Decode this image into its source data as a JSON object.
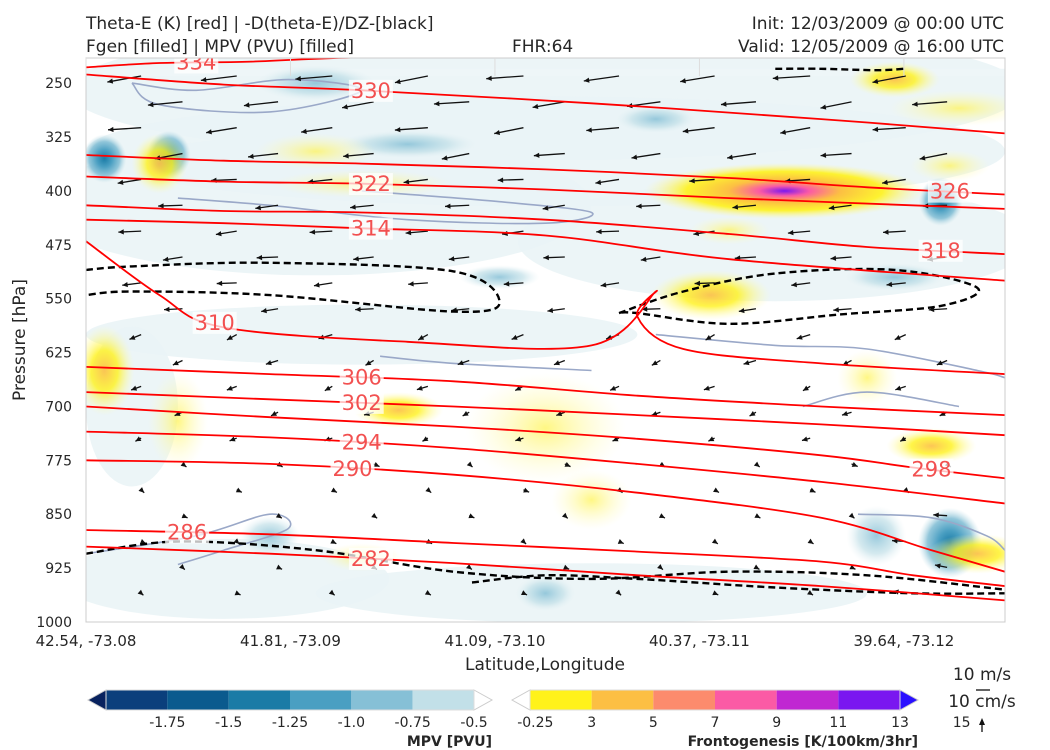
{
  "header": {
    "title_left_1": "Theta-E (K) [red] | -D(theta-E)/DZ-[black]",
    "title_left_2": "Fgen [filled] | MPV (PVU) [filled]",
    "fhr": "FHR:64",
    "init": "Init: 12/03/2009 @ 00:00 UTC",
    "valid": "Valid: 12/05/2009 @ 16:00 UTC"
  },
  "colors": {
    "theta_e": "#ff0000",
    "theta_e_label": "#f25050",
    "stability": "#000000",
    "mpv_outline": "#9aa8c8",
    "vector": "#111111"
  },
  "chart_data": {
    "type": "cross-section",
    "xlabel": "Latitude,Longitude",
    "ylabel": "Pressure [hPa]",
    "x_ticks": [
      "42.54, -73.08",
      "41.81, -73.09",
      "41.09, -73.10",
      "40.37, -73.11",
      "39.64, -73.12"
    ],
    "y_ticks": [
      250,
      325,
      400,
      475,
      550,
      625,
      700,
      775,
      850,
      925,
      1000
    ],
    "ylim": [
      1000,
      215
    ],
    "grid": true,
    "theta_e_contours": [
      {
        "label": "334",
        "x": [
          0.0,
          0.08,
          0.18,
          0.3,
          0.48
        ],
        "p": [
          228,
          222,
          220,
          214,
          214
        ]
      },
      {
        "label": "330",
        "x": [
          0.0,
          0.15,
          0.3,
          0.55,
          0.8,
          1.0
        ],
        "p": [
          238,
          252,
          260,
          278,
          300,
          320
        ]
      },
      {
        "label": "326",
        "x": [
          0.0,
          0.15,
          0.3,
          0.5,
          0.7,
          0.85,
          1.0
        ],
        "p": [
          350,
          358,
          362,
          370,
          382,
          395,
          405
        ]
      },
      {
        "label": "322",
        "x": [
          0.0,
          0.15,
          0.3,
          0.5,
          0.7,
          1.0
        ],
        "p": [
          380,
          387,
          390,
          398,
          410,
          425
        ]
      },
      {
        "label": "318",
        "x": [
          0.0,
          0.15,
          0.3,
          0.5,
          0.7,
          0.85,
          1.0
        ],
        "p": [
          420,
          428,
          430,
          440,
          460,
          478,
          488
        ]
      },
      {
        "label": "314",
        "x": [
          0.0,
          0.15,
          0.3,
          0.5,
          0.7,
          1.0
        ],
        "p": [
          440,
          445,
          452,
          462,
          495,
          525
        ]
      },
      {
        "label": "310",
        "x": [
          0.0,
          0.08,
          0.15,
          0.35,
          0.55,
          0.62,
          0.6,
          0.65,
          0.8,
          1.0
        ],
        "p": [
          470,
          545,
          590,
          610,
          615,
          540,
          575,
          620,
          640,
          655
        ]
      },
      {
        "label": "306",
        "x": [
          0.0,
          0.2,
          0.4,
          0.6,
          0.8,
          1.0
        ],
        "p": [
          645,
          655,
          665,
          685,
          700,
          712
        ]
      },
      {
        "label": "302",
        "x": [
          0.0,
          0.2,
          0.4,
          0.6,
          0.8,
          1.0
        ],
        "p": [
          680,
          690,
          700,
          712,
          725,
          740
        ]
      },
      {
        "label": "298",
        "x": [
          0.0,
          0.2,
          0.4,
          0.6,
          0.8,
          0.9,
          1.0
        ],
        "p": [
          700,
          715,
          728,
          745,
          768,
          785,
          800
        ]
      },
      {
        "label": "294",
        "x": [
          0.0,
          0.2,
          0.4,
          0.6,
          0.8,
          1.0
        ],
        "p": [
          735,
          743,
          758,
          780,
          805,
          835
        ]
      },
      {
        "label": "290",
        "x": [
          0.0,
          0.2,
          0.4,
          0.6,
          0.8,
          0.92,
          1.0
        ],
        "p": [
          775,
          780,
          795,
          820,
          855,
          900,
          930
        ]
      },
      {
        "label": "286",
        "x": [
          0.0,
          0.2,
          0.4,
          0.6,
          0.8,
          0.9,
          1.0
        ],
        "p": [
          872,
          878,
          890,
          902,
          916,
          935,
          950
        ]
      },
      {
        "label": "282",
        "x": [
          0.0,
          0.2,
          0.4,
          0.6,
          0.8,
          1.0
        ],
        "p": [
          895,
          905,
          918,
          935,
          950,
          970
        ]
      }
    ],
    "stability_contours": [
      {
        "x": [
          0.75,
          0.8,
          0.86,
          0.89
        ],
        "p": [
          230,
          230,
          232,
          230
        ]
      },
      {
        "x": [
          0.0,
          0.05,
          0.2,
          0.4,
          0.45,
          0.4,
          0.2,
          0.05,
          0.0
        ],
        "p": [
          510,
          505,
          500,
          512,
          555,
          568,
          545,
          540,
          545
        ]
      },
      {
        "x": [
          0.58,
          0.65,
          0.75,
          0.88,
          0.97,
          0.93,
          0.82,
          0.7,
          0.6,
          0.58
        ],
        "p": [
          570,
          540,
          515,
          510,
          535,
          560,
          572,
          585,
          570,
          570
        ]
      },
      {
        "x": [
          0.0,
          0.1,
          0.25,
          0.4,
          0.55,
          0.7,
          0.85,
          1.0
        ],
        "p": [
          905,
          888,
          900,
          930,
          940,
          930,
          935,
          955
        ]
      },
      {
        "x": [
          0.42,
          0.5,
          0.6,
          0.75,
          0.9,
          1.0
        ],
        "p": [
          945,
          935,
          940,
          952,
          960,
          960
        ]
      }
    ],
    "frontogenesis_max": [
      {
        "x": 0.76,
        "p": 400,
        "value": 13
      },
      {
        "x": 0.88,
        "p": 245,
        "value": 7
      },
      {
        "x": 0.34,
        "p": 705,
        "value": 3
      },
      {
        "x": 0.92,
        "p": 755,
        "value": 5
      }
    ],
    "mpv_min": [
      {
        "x": 0.02,
        "p": 355,
        "value": -0.75
      },
      {
        "x": 0.09,
        "p": 350,
        "value": -0.75
      },
      {
        "x": 0.93,
        "p": 415,
        "value": -0.75
      },
      {
        "x": 0.94,
        "p": 890,
        "value": -1.25
      }
    ],
    "vector_reference": {
      "u_label": "10 m/s",
      "v_label": "10 cm/s"
    },
    "colorbars": [
      {
        "label": "MPV [PVU]",
        "ticks": [
          "-1.75",
          "-1.5",
          "-1.25",
          "-1.0",
          "-0.75",
          "-0.5",
          "-0.25"
        ],
        "colors": [
          "#08225e",
          "#0b3f7c",
          "#0a5a8e",
          "#1a7ba6",
          "#4a9fc2",
          "#86c0d6",
          "#c2e0e8",
          "#ffffff"
        ]
      },
      {
        "label": "Frontogenesis [K/100km/3hr]",
        "ticks": [
          "3",
          "5",
          "7",
          "9",
          "11",
          "13",
          "15"
        ],
        "colors": [
          "#ffffff",
          "#fff21a",
          "#fcbf43",
          "#fc8b6d",
          "#fb5aa5",
          "#c027d2",
          "#7a17f0",
          "#2a10ff"
        ]
      }
    ]
  }
}
